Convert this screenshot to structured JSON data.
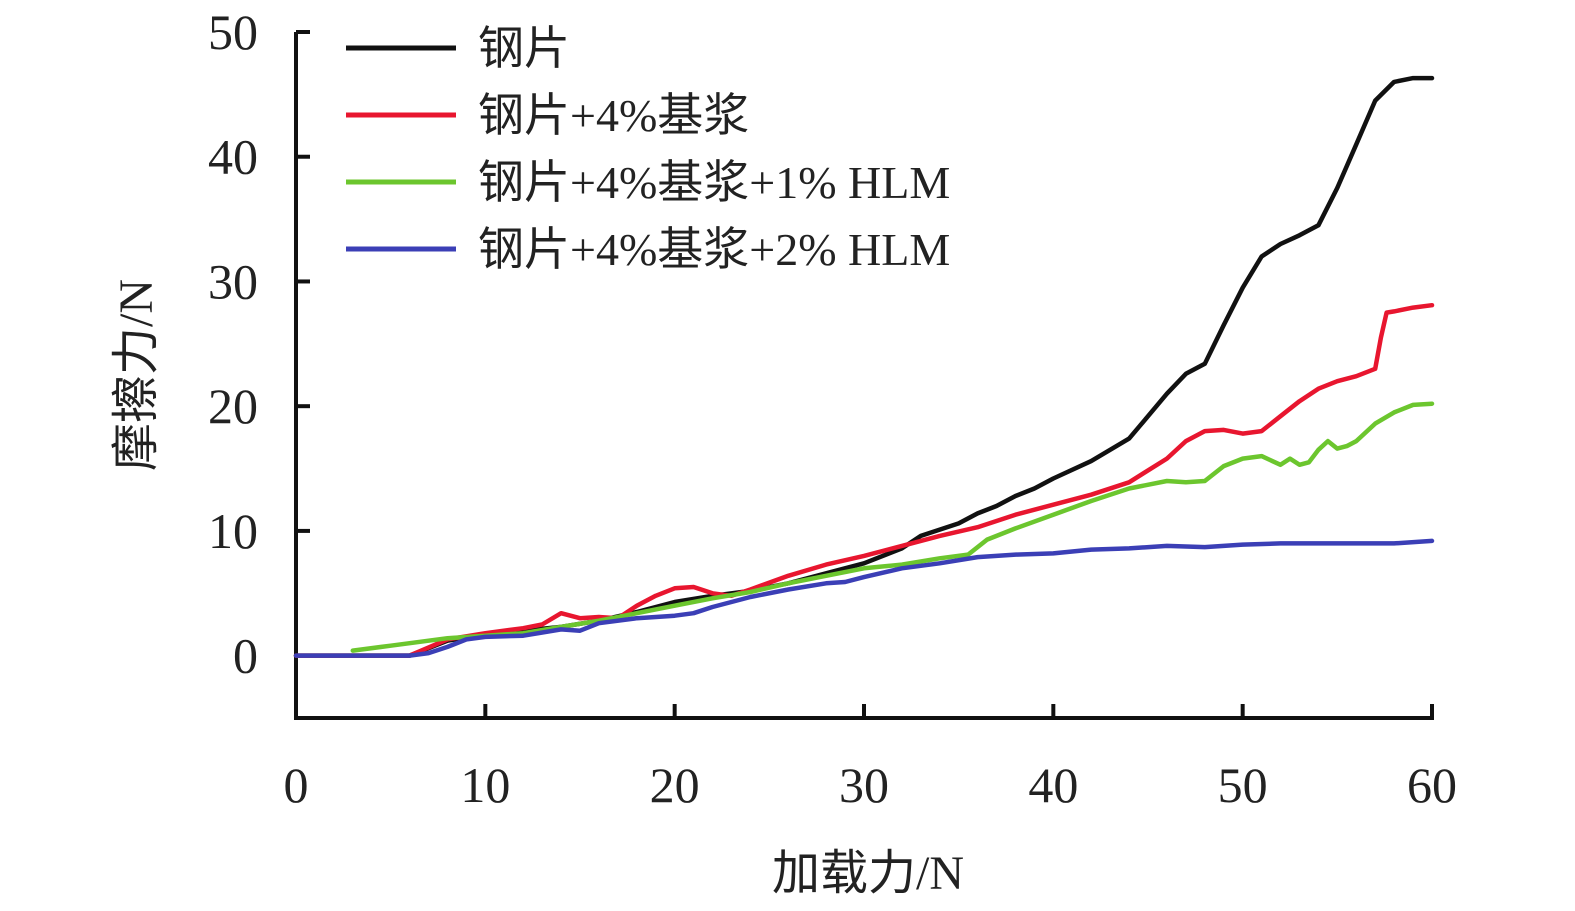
{
  "chart_data": {
    "type": "line",
    "xlabel": "加载力/N",
    "ylabel": "摩擦力/N",
    "xlim": [
      0,
      60
    ],
    "ylim": [
      -5,
      50
    ],
    "xticks": [
      0,
      10,
      20,
      30,
      40,
      50,
      60
    ],
    "yticks": [
      0,
      10,
      20,
      30,
      40,
      50
    ],
    "grid": false,
    "legend_position": "top-left",
    "series": [
      {
        "name": "钢片",
        "color": "#111111",
        "x": [
          0,
          6,
          8,
          10,
          12,
          14,
          16,
          18,
          20,
          22,
          24,
          26,
          28,
          30,
          32,
          33,
          35,
          36,
          37,
          38,
          39,
          40,
          42,
          44,
          45,
          46,
          47,
          48,
          49,
          50,
          51,
          52,
          53,
          54,
          55,
          56,
          57,
          58,
          59,
          60
        ],
        "values": [
          0,
          0,
          1.2,
          1.7,
          2.0,
          2.3,
          2.8,
          3.5,
          4.3,
          4.8,
          5.2,
          5.8,
          6.6,
          7.4,
          8.6,
          9.6,
          10.6,
          11.4,
          12.0,
          12.8,
          13.4,
          14.2,
          15.6,
          17.4,
          19.2,
          21.0,
          22.6,
          23.4,
          26.5,
          29.5,
          32.0,
          33.0,
          33.7,
          34.5,
          37.5,
          41.0,
          44.5,
          46.0,
          46.3,
          46.3
        ]
      },
      {
        "name": "钢片+4%基浆",
        "color": "#e8162f",
        "x": [
          0,
          6,
          8,
          10,
          12,
          13,
          14,
          15,
          16,
          17,
          18,
          19,
          20,
          21,
          22,
          23,
          24,
          26,
          28,
          30,
          32,
          34,
          36,
          38,
          40,
          42,
          44,
          46,
          47,
          48,
          49,
          50,
          51,
          52,
          53,
          54,
          55,
          56,
          57,
          57.3,
          57.6,
          58,
          59,
          60
        ],
        "values": [
          0,
          0,
          1.3,
          1.8,
          2.2,
          2.5,
          3.4,
          3.0,
          3.1,
          3.0,
          4.0,
          4.8,
          5.4,
          5.5,
          5.0,
          4.8,
          5.3,
          6.4,
          7.3,
          8.0,
          8.8,
          9.6,
          10.3,
          11.3,
          12.1,
          12.9,
          13.9,
          15.8,
          17.2,
          18.0,
          18.1,
          17.8,
          18.0,
          19.2,
          20.4,
          21.4,
          22.0,
          22.4,
          23.0,
          25.5,
          27.5,
          27.6,
          27.9,
          28.1
        ]
      },
      {
        "name": "钢片+4%基浆+1% HLM",
        "color": "#6cc62e",
        "x": [
          3,
          5,
          8,
          10,
          12,
          14,
          16,
          18,
          20,
          22,
          24,
          26,
          28,
          30,
          32,
          34,
          35.5,
          36.5,
          38,
          40,
          42,
          44,
          46,
          47,
          48,
          49,
          50,
          51,
          52,
          52.5,
          53,
          53.5,
          54,
          54.5,
          55,
          55.5,
          56,
          57,
          58,
          59,
          60
        ],
        "values": [
          0.4,
          0.8,
          1.4,
          1.6,
          1.8,
          2.3,
          2.8,
          3.4,
          4.0,
          4.6,
          5.1,
          5.8,
          6.4,
          7.0,
          7.3,
          7.8,
          8.1,
          9.3,
          10.2,
          11.3,
          12.4,
          13.4,
          14.0,
          13.9,
          14.0,
          15.2,
          15.8,
          16.0,
          15.3,
          15.8,
          15.3,
          15.5,
          16.5,
          17.2,
          16.6,
          16.8,
          17.2,
          18.6,
          19.5,
          20.1,
          20.2
        ]
      },
      {
        "name": "钢片+4%基浆+2% HLM",
        "color": "#3b3fb6",
        "x": [
          0,
          6,
          7,
          8,
          9,
          10,
          12,
          14,
          15,
          16,
          18,
          20,
          21,
          22,
          24,
          26,
          28,
          29,
          30,
          32,
          34,
          36,
          38,
          40,
          42,
          44,
          46,
          48,
          50,
          52,
          54,
          56,
          58,
          60
        ],
        "values": [
          0,
          0,
          0.2,
          0.7,
          1.3,
          1.5,
          1.6,
          2.1,
          2.0,
          2.6,
          3.0,
          3.2,
          3.4,
          3.9,
          4.7,
          5.3,
          5.8,
          5.9,
          6.3,
          7.0,
          7.4,
          7.9,
          8.1,
          8.2,
          8.5,
          8.6,
          8.8,
          8.7,
          8.9,
          9.0,
          9.0,
          9.0,
          9.0,
          9.2
        ]
      }
    ]
  }
}
